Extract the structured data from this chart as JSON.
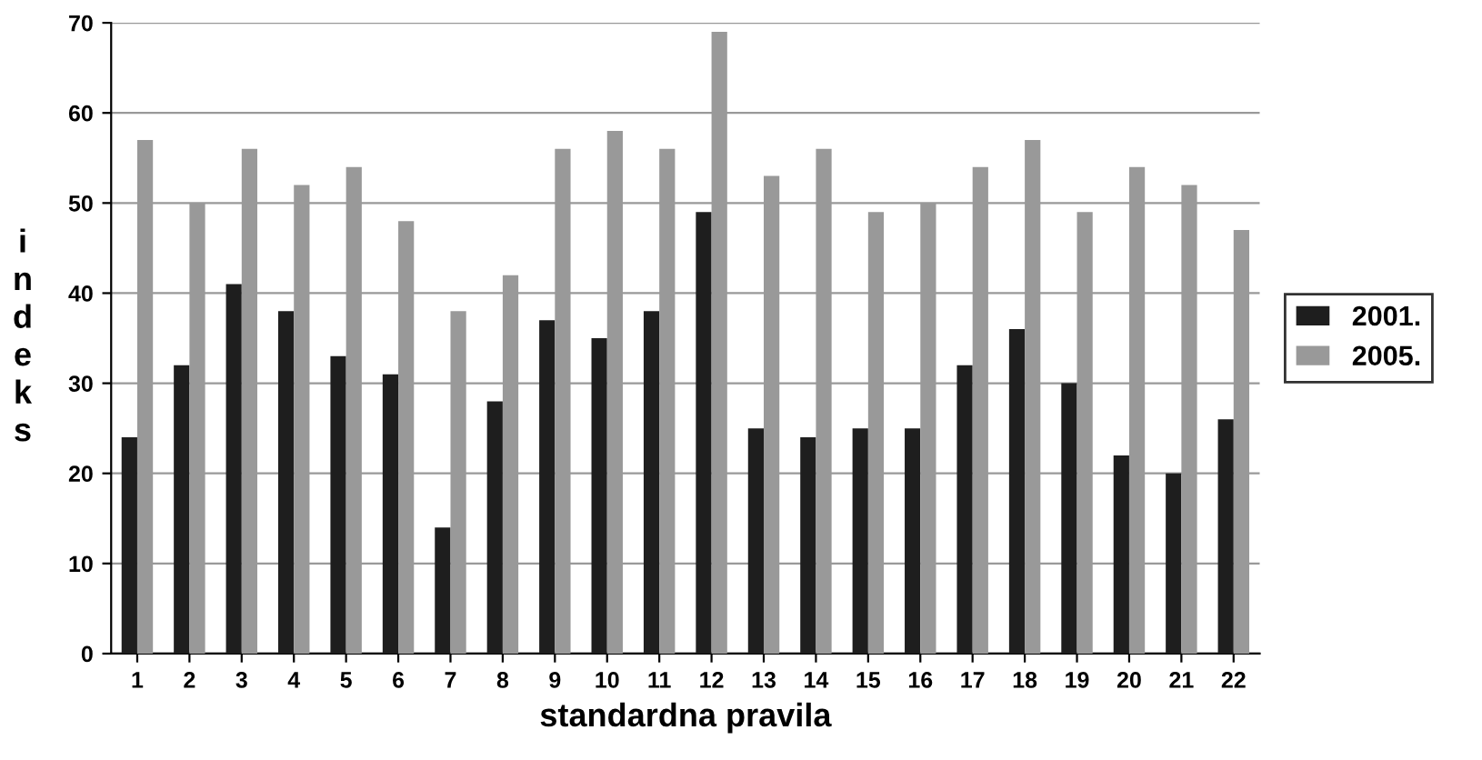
{
  "chart_data": {
    "type": "bar",
    "xlabel": "standardna pravila",
    "ylabel": "indeks",
    "categories": [
      "1",
      "2",
      "3",
      "4",
      "5",
      "6",
      "7",
      "8",
      "9",
      "10",
      "11",
      "12",
      "13",
      "14",
      "15",
      "16",
      "17",
      "18",
      "19",
      "20",
      "21",
      "22"
    ],
    "series": [
      {
        "name": "2001.",
        "color": "#1e1e1e",
        "values": [
          24,
          32,
          41,
          38,
          33,
          31,
          14,
          28,
          37,
          35,
          38,
          49,
          25,
          24,
          25,
          25,
          32,
          36,
          30,
          22,
          20,
          26
        ]
      },
      {
        "name": "2005.",
        "color": "#999999",
        "values": [
          57,
          50,
          56,
          52,
          54,
          48,
          38,
          42,
          56,
          58,
          56,
          69,
          53,
          56,
          49,
          50,
          54,
          57,
          49,
          54,
          52,
          47
        ]
      }
    ],
    "ylim": [
      0,
      70
    ],
    "yticks": [
      0,
      10,
      20,
      30,
      40,
      50,
      60,
      70
    ],
    "grid": "y",
    "legend": "right"
  }
}
